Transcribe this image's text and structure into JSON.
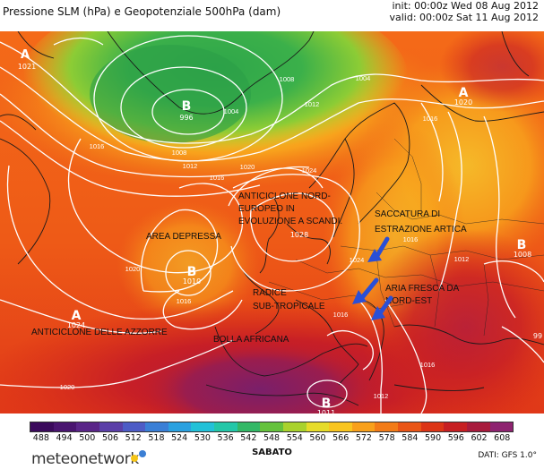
{
  "header": {
    "title": "Pressione SLM (hPa) e Geopotenziale 500hPa (dam)",
    "init": "init: 00:00z Wed 08 Aug 2012",
    "valid": "valid: 00:00z Sat 11 Aug 2012"
  },
  "map": {
    "centers": [
      {
        "letter": "A",
        "value": "1021"
      },
      {
        "letter": "B",
        "value": "996"
      },
      {
        "letter": "A",
        "value": "1020"
      },
      {
        "letter": "B",
        "value": "1010"
      },
      {
        "letter": "A",
        "value": "1024"
      },
      {
        "letter": "B",
        "value": "1008"
      },
      {
        "letter": "B",
        "value": "1011"
      },
      {
        "letter": "A",
        "value": "1028"
      }
    ],
    "isobar_labels": [
      "1008",
      "1004",
      "1012",
      "1016",
      "1008",
      "1012",
      "1016",
      "1020",
      "1024",
      "1016",
      "1020",
      "1016",
      "1016",
      "1020",
      "1024",
      "1016",
      "1012",
      "1016",
      "1012",
      "1004"
    ],
    "annotations": [
      {
        "lines": [
          "ANTICICLONE NORD-",
          "EUROPEO IN",
          "EVOLUZIONE A SCANDI."
        ]
      },
      {
        "lines": [
          "SACCATURA DI",
          "ESTRAZIONE ARTICA"
        ]
      },
      {
        "lines": [
          "AREA DEPRESSA"
        ]
      },
      {
        "lines": [
          "RADICE",
          "SUB-TROPICALE"
        ]
      },
      {
        "lines": [
          "ARIA FRESCA DA",
          "NORD-EST"
        ]
      },
      {
        "lines": [
          "ANTICICLONE DELLE AZZORRE"
        ]
      },
      {
        "lines": [
          "BOLLA AFRICANA"
        ]
      }
    ],
    "edge_label": "99"
  },
  "legend": {
    "ticks": [
      "488",
      "494",
      "500",
      "506",
      "512",
      "518",
      "524",
      "530",
      "536",
      "542",
      "548",
      "554",
      "560",
      "566",
      "572",
      "578",
      "584",
      "590",
      "596",
      "602",
      "608"
    ],
    "colors": [
      "#3b0a5c",
      "#4a1570",
      "#5a2588",
      "#5b3fa8",
      "#4d5cc6",
      "#3a7fd6",
      "#2aa1e0",
      "#22c1d8",
      "#23c7a8",
      "#33b866",
      "#65c23c",
      "#a9d22d",
      "#e6dc2a",
      "#f9c51f",
      "#f8a01b",
      "#f27b18",
      "#ea5516",
      "#dc3516",
      "#c71f22",
      "#a81b3c",
      "#8e2370"
    ],
    "day": "SABATO"
  },
  "footer": {
    "logo": "meteonetwork",
    "source": "DATI: GFS 1.0°"
  }
}
